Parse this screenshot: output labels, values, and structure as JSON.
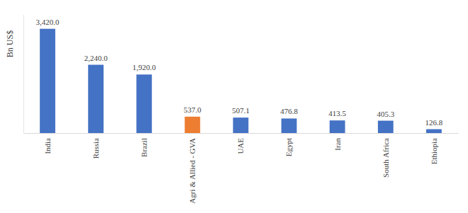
{
  "chart_data": {
    "type": "bar",
    "y_label": "Bn US$",
    "categories": [
      "India",
      "Russia",
      "Brazil",
      "Agri & Allied - GVA",
      "UAE",
      "Egypt",
      "Iran",
      "South Africa",
      "Ethiopia"
    ],
    "values": [
      3420.0,
      2240.0,
      1920.0,
      537.0,
      507.1,
      476.8,
      413.5,
      405.3,
      126.8
    ],
    "value_labels": [
      "3,420.0",
      "2,240.0",
      "1,920.0",
      "537.0",
      "507.1",
      "476.8",
      "413.5",
      "405.3",
      "126.8"
    ],
    "colors": [
      "#4472c4",
      "#4472c4",
      "#4472c4",
      "#ed7d31",
      "#4472c4",
      "#4472c4",
      "#4472c4",
      "#4472c4",
      "#4472c4"
    ],
    "ylim": [
      0,
      3900
    ],
    "data_labels": true,
    "tick_labels": "x",
    "grid": false
  }
}
